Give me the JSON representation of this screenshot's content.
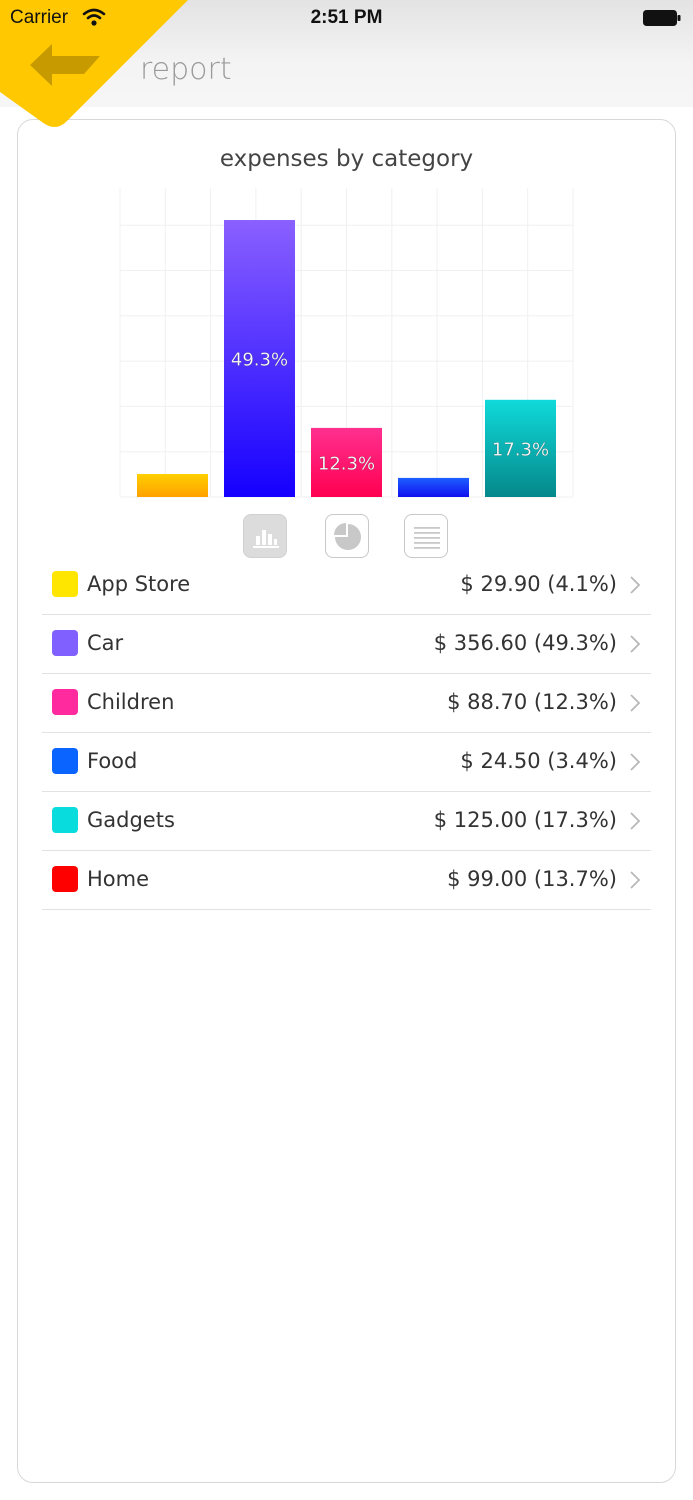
{
  "status_bar": {
    "carrier": "Carrier",
    "time": "2:51 PM",
    "wifi_icon": "wifi-icon",
    "battery_icon": "battery-icon"
  },
  "nav": {
    "title": "report",
    "back_icon": "back-arrow-icon",
    "accent_color": "#FFC800"
  },
  "chart_data": {
    "type": "bar",
    "title": "expenses by category",
    "categories": [
      "App Store",
      "Car",
      "Children",
      "Food",
      "Gadgets",
      "Home"
    ],
    "values": [
      4.1,
      49.3,
      12.3,
      3.4,
      17.3,
      13.7
    ],
    "colors": [
      [
        "#FFD000",
        "#FFA000"
      ],
      [
        "#8A60FF",
        "#1500FF"
      ],
      [
        "#FF3090",
        "#FF0050"
      ],
      [
        "#1E60FF",
        "#1010F0"
      ],
      [
        "#10DADA",
        "#05888A"
      ],
      [
        "#FF2020",
        "#D00000"
      ]
    ],
    "data_labels": [
      "",
      "49.3%",
      "12.3%",
      "",
      "17.3%",
      ""
    ],
    "visible_bars": 5,
    "ylim": [
      0,
      55
    ],
    "grid": true,
    "legend": "none"
  },
  "view_switcher": [
    {
      "name": "bar-chart-view-icon",
      "active": true
    },
    {
      "name": "pie-chart-view-icon",
      "active": false
    },
    {
      "name": "list-view-icon",
      "active": false
    }
  ],
  "categories": [
    {
      "label": "App Store",
      "amount": "$ 29.90 (4.1%)",
      "color": "#FFE600"
    },
    {
      "label": "Car",
      "amount": "$ 356.60 (49.3%)",
      "color": "#8060FF"
    },
    {
      "label": "Children",
      "amount": "$ 88.70 (12.3%)",
      "color": "#FF2A9E"
    },
    {
      "label": "Food",
      "amount": "$ 24.50 (3.4%)",
      "color": "#0A64FF"
    },
    {
      "label": "Gadgets",
      "amount": "$ 125.00 (17.3%)",
      "color": "#08DCDC"
    },
    {
      "label": "Home",
      "amount": "$ 99.00 (13.7%)",
      "color": "#FF0000"
    }
  ]
}
